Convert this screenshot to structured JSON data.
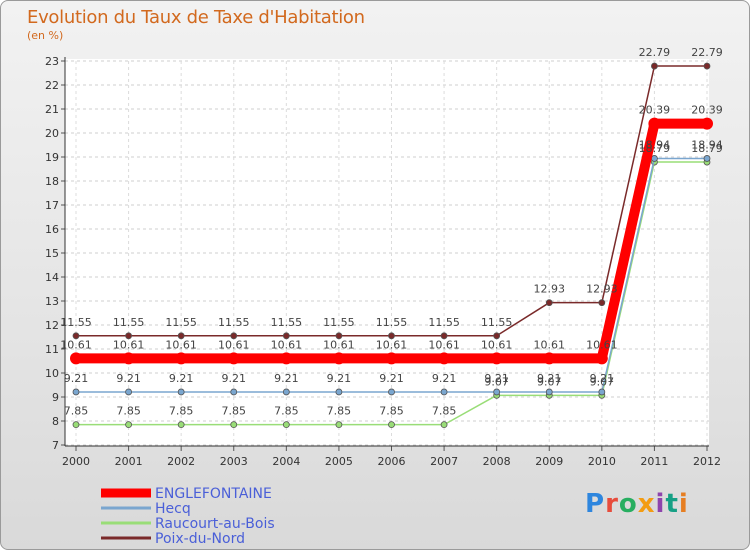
{
  "chart_data": {
    "type": "line",
    "title": "Evolution du Taux de Taxe d'Habitation",
    "ylabel": "(en %)",
    "x": [
      "2000",
      "2001",
      "2002",
      "2003",
      "2004",
      "2005",
      "2006",
      "2007",
      "2008",
      "2009",
      "2010",
      "2011",
      "2012"
    ],
    "ylim": [
      7,
      23
    ],
    "yticks": [
      "7",
      "8",
      "9",
      "10",
      "11",
      "12",
      "13",
      "14",
      "15",
      "16",
      "17",
      "18",
      "19",
      "20",
      "21",
      "22",
      "23"
    ],
    "series": [
      {
        "name": "ENGLEFONTAINE",
        "color": "#ff0000",
        "values": [
          10.61,
          10.61,
          10.61,
          10.61,
          10.61,
          10.61,
          10.61,
          10.61,
          10.61,
          10.61,
          10.61,
          20.39,
          20.39
        ],
        "labels": [
          "10.61",
          "10.61",
          "10.61",
          "10.61",
          "10.61",
          "10.61",
          "10.61",
          "10.61",
          "10.61",
          "10.61",
          "10.61",
          "20.39",
          "20.39"
        ]
      },
      {
        "name": "Hecq",
        "color": "#7aa6cf",
        "values": [
          9.21,
          9.21,
          9.21,
          9.21,
          9.21,
          9.21,
          9.21,
          9.21,
          9.21,
          9.21,
          9.21,
          18.94,
          18.94
        ],
        "labels": [
          "9.21",
          "9.21",
          "9.21",
          "9.21",
          "9.21",
          "9.21",
          "9.21",
          "9.21",
          "9.21",
          "9.21",
          "9.21",
          "18.94",
          "18.94"
        ]
      },
      {
        "name": "Raucourt-au-Bois",
        "color": "#99dd77",
        "values": [
          7.85,
          7.85,
          7.85,
          7.85,
          7.85,
          7.85,
          7.85,
          7.85,
          9.07,
          9.07,
          9.07,
          18.79,
          18.79
        ],
        "labels": [
          "7.85",
          "7.85",
          "7.85",
          "7.85",
          "7.85",
          "7.85",
          "7.85",
          "7.85",
          "9.07",
          "9.07",
          "9.07",
          "18.79",
          "18.79"
        ]
      },
      {
        "name": "Poix-du-Nord",
        "color": "#7a2a2a",
        "values": [
          11.55,
          11.55,
          11.55,
          11.55,
          11.55,
          11.55,
          11.55,
          11.55,
          11.55,
          12.93,
          12.93,
          22.79,
          22.79
        ],
        "labels": [
          "11.55",
          "11.55",
          "11.55",
          "11.55",
          "11.55",
          "11.55",
          "11.55",
          "11.55",
          "11.55",
          "12.93",
          "12.93",
          "22.79",
          "22.79"
        ]
      }
    ],
    "legend_position": "bottom-left"
  },
  "logo": {
    "letters": [
      "P",
      "r",
      "o",
      "x",
      "i",
      "t",
      "i"
    ],
    "colors": [
      "#2e86de",
      "#e74c3c",
      "#27ae60",
      "#f39c12",
      "#8e44ad",
      "#16a085",
      "#e67e22"
    ]
  }
}
